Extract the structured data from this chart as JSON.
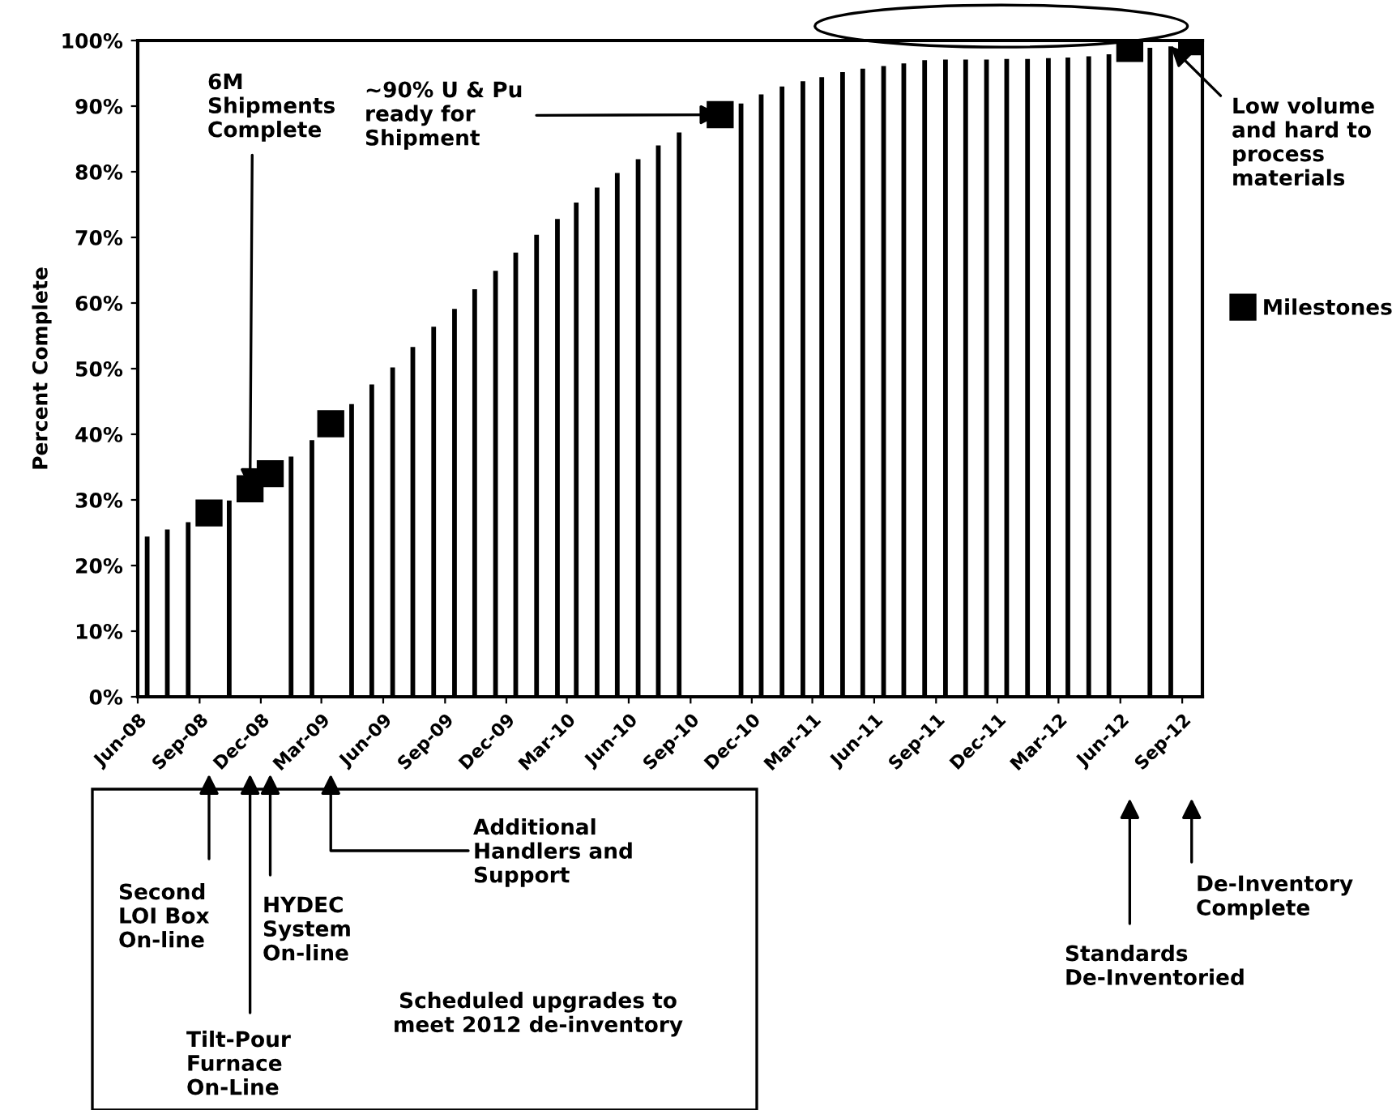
{
  "chart_data": {
    "type": "bar",
    "ylabel": "Percent Complete",
    "xlim": [
      "2008-06-01",
      "2012-10-01"
    ],
    "xticks": [
      {
        "value": "2008-06-01",
        "label": "Jun-08"
      },
      {
        "value": "2008-09-01",
        "label": "Sep-08"
      },
      {
        "value": "2008-12-01",
        "label": "Dec-08"
      },
      {
        "value": "2009-03-01",
        "label": "Mar-09"
      },
      {
        "value": "2009-06-01",
        "label": "Jun-09"
      },
      {
        "value": "2009-09-01",
        "label": "Sep-09"
      },
      {
        "value": "2009-12-01",
        "label": "Dec-09"
      },
      {
        "value": "2010-03-01",
        "label": "Mar-10"
      },
      {
        "value": "2010-06-01",
        "label": "Jun-10"
      },
      {
        "value": "2010-09-01",
        "label": "Sep-10"
      },
      {
        "value": "2010-12-01",
        "label": "Dec-10"
      },
      {
        "value": "2011-03-01",
        "label": "Mar-11"
      },
      {
        "value": "2011-06-01",
        "label": "Jun-11"
      },
      {
        "value": "2011-09-01",
        "label": "Sep-11"
      },
      {
        "value": "2011-12-01",
        "label": "Dec-11"
      },
      {
        "value": "2012-03-01",
        "label": "Mar-12"
      },
      {
        "value": "2012-06-01",
        "label": "Jun-12"
      },
      {
        "value": "2012-09-01",
        "label": "Sep-12"
      }
    ],
    "ylim": [
      0,
      100
    ],
    "yticks": [
      {
        "value": 0,
        "label": "0%"
      },
      {
        "value": 10,
        "label": "10%"
      },
      {
        "value": 20,
        "label": "20%"
      },
      {
        "value": 30,
        "label": "30%"
      },
      {
        "value": 40,
        "label": "40%"
      },
      {
        "value": 50,
        "label": "50%"
      },
      {
        "value": 60,
        "label": "60%"
      },
      {
        "value": 70,
        "label": "70%"
      },
      {
        "value": 80,
        "label": "80%"
      },
      {
        "value": 90,
        "label": "90%"
      },
      {
        "value": 100,
        "label": "100%"
      }
    ],
    "series": [
      {
        "color": "#000000",
        "x": [
          "2008-06-15",
          "2008-07-15",
          "2008-08-15",
          "2008-09-15",
          "2008-10-15",
          "2008-11-15",
          "2008-12-15",
          "2009-01-15",
          "2009-02-15",
          "2009-03-15",
          "2009-04-15",
          "2009-05-15",
          "2009-06-15",
          "2009-07-15",
          "2009-08-15",
          "2009-09-15",
          "2009-10-15",
          "2009-11-15",
          "2009-12-15",
          "2010-01-15",
          "2010-02-15",
          "2010-03-15",
          "2010-04-15",
          "2010-05-15",
          "2010-06-15",
          "2010-07-15",
          "2010-08-15",
          "2010-09-15",
          "2010-10-15",
          "2010-11-15",
          "2010-12-15",
          "2011-01-15",
          "2011-02-15",
          "2011-03-15",
          "2011-04-15",
          "2011-05-15",
          "2011-06-15",
          "2011-07-15",
          "2011-08-15",
          "2011-09-15",
          "2011-10-15",
          "2011-11-15",
          "2011-12-15",
          "2012-01-15",
          "2012-02-15",
          "2012-03-15",
          "2012-04-15",
          "2012-05-15",
          "2012-06-15",
          "2012-07-15",
          "2012-08-15"
        ],
        "values": [
          24.4,
          25.5,
          26.6,
          null,
          29.9,
          null,
          null,
          36.6,
          39.1,
          null,
          44.6,
          47.6,
          50.2,
          53.3,
          56.4,
          59.1,
          62.1,
          64.9,
          67.7,
          70.4,
          72.8,
          75.3,
          77.6,
          79.8,
          81.9,
          84.0,
          86.0,
          null,
          null,
          90.4,
          91.8,
          93.0,
          93.8,
          94.4,
          95.2,
          95.7,
          96.1,
          96.5,
          97.0,
          97.1,
          97.1,
          97.1,
          97.2,
          97.2,
          97.3,
          97.4,
          97.6,
          97.9,
          null,
          98.9,
          99.1
        ]
      },
      {
        "type": "scatter",
        "name": "Milestones",
        "color": "#000000",
        "marker": "square",
        "x": [
          "2008-09-15",
          "2008-11-15",
          "2008-12-15",
          "2009-03-15",
          "2010-10-15",
          "2012-06-15",
          "2012-09-15"
        ],
        "values": [
          28.0,
          31.7,
          34.0,
          41.6,
          88.7,
          98.8,
          99.8
        ]
      }
    ],
    "legend": "right",
    "annotations": [
      {
        "text": "6M\nShipments\nComplete",
        "x": "2008-11-15",
        "y": 31.7
      },
      {
        "text": "~90% U & Pu\nready for\nShipment",
        "x": "2010-10-15",
        "y": 88.7
      },
      {
        "text": "Low volume\nand hard to\nprocess\nmaterials",
        "x": "2012-08-15",
        "y": 99.1
      },
      "Second\nLOI Box\nOn-line",
      "Tilt-Pour\nFurnace\nOn-Line",
      "HYDEC\nSystem\nOn-line",
      "Additional\nHandlers and\nSupport",
      "Standards\nDe-Inventoried",
      "De-Inventory\nComplete",
      "Scheduled upgrades to\nmeet 2012 de-inventory"
    ]
  }
}
